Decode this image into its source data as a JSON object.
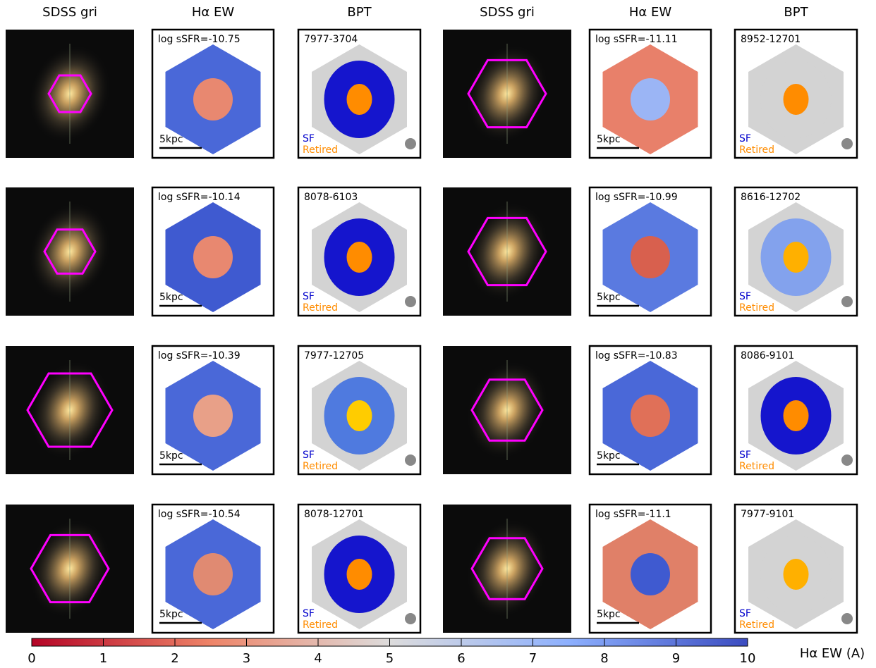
{
  "column_headers": [
    "SDSS gri",
    "Hα EW",
    "BPT",
    "SDSS gri",
    "Hα EW",
    "BPT"
  ],
  "galaxies": [
    {
      "ssfr": "log sSFR=-10.75",
      "id": "7977-3704",
      "scale": "5kpc",
      "sf": "SF",
      "retired": "Retired"
    },
    {
      "ssfr": "log sSFR=-11.11",
      "id": "8952-12701",
      "scale": "5kpc",
      "sf": "SF",
      "retired": "Retired"
    },
    {
      "ssfr": "log sSFR=-10.14",
      "id": "8078-6103",
      "scale": "5kpc",
      "sf": "SF",
      "retired": "Retired"
    },
    {
      "ssfr": "log sSFR=-10.99",
      "id": "8616-12702",
      "scale": "5kpc",
      "sf": "SF",
      "retired": "Retired"
    },
    {
      "ssfr": "log sSFR=-10.39",
      "id": "7977-12705",
      "scale": "5kpc",
      "sf": "SF",
      "retired": "Retired"
    },
    {
      "ssfr": "log sSFR=-10.83",
      "id": "8086-9101",
      "scale": "5kpc",
      "sf": "SF",
      "retired": "Retired"
    },
    {
      "ssfr": "log sSFR=-10.54",
      "id": "8078-12701",
      "scale": "5kpc",
      "sf": "SF",
      "retired": "Retired"
    },
    {
      "ssfr": "log sSFR=-11.1",
      "id": "7977-9101",
      "scale": "5kpc",
      "sf": "SF",
      "retired": "Retired"
    }
  ],
  "colorbar": {
    "label": "Hα EW (A)",
    "range": [
      0,
      10
    ],
    "ticks": [
      0,
      1,
      2,
      3,
      4,
      5,
      6,
      7,
      8,
      9,
      10
    ]
  }
}
